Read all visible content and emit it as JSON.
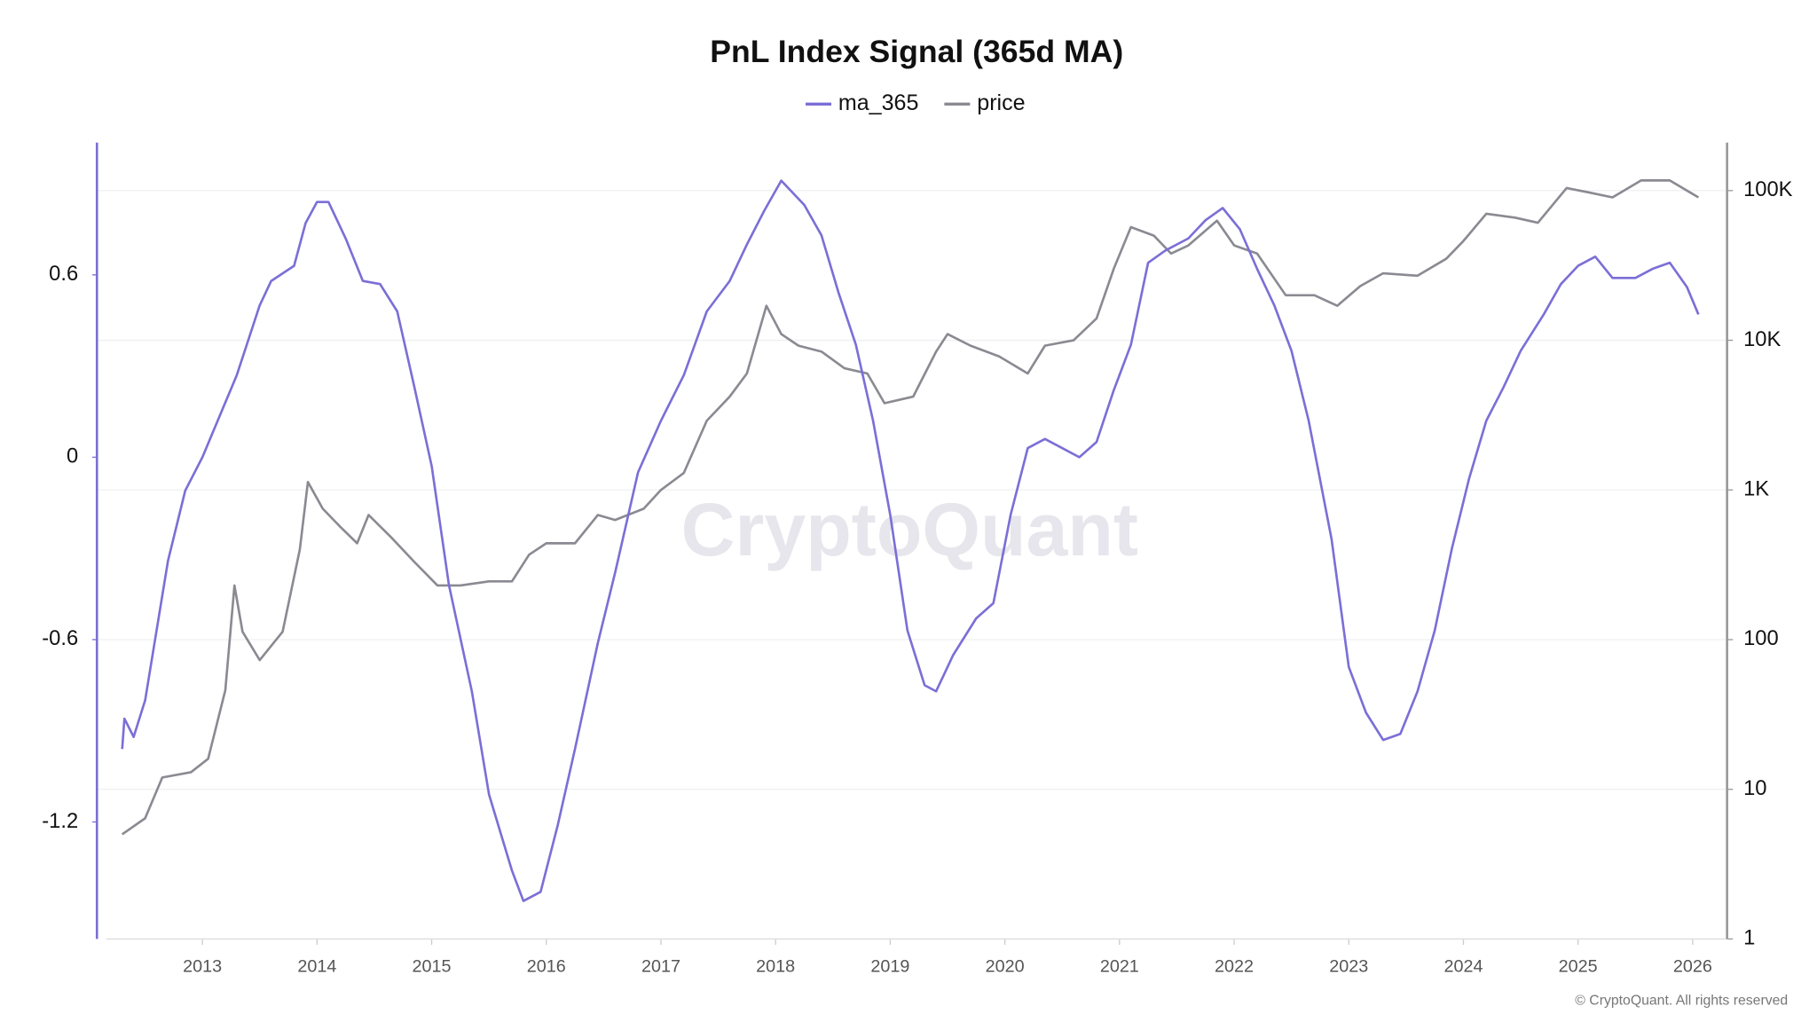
{
  "chart_data": {
    "type": "line",
    "title": "PnL Index Signal (365d MA)",
    "watermark": "CryptoQuant",
    "footer": "© CryptoQuant. All rights reserved",
    "xlim": [
      2012.08,
      2026.3
    ],
    "xticks": [
      2013,
      2014,
      2015,
      2016,
      2017,
      2018,
      2019,
      2020,
      2021,
      2022,
      2023,
      2024,
      2025,
      2026
    ],
    "ylim": [
      -1.585,
      1.035
    ],
    "yticks": [
      -1.2,
      -0.6,
      0,
      0.6
    ],
    "y2lim": [
      1,
      209000
    ],
    "y2log": true,
    "y2ticks": [
      1,
      10,
      100,
      {
        "value": 1000,
        "label": "1K"
      },
      {
        "value": 10000,
        "label": "10K"
      },
      {
        "value": 100000,
        "label": "100K"
      }
    ],
    "grid": true,
    "series": [
      {
        "name": "ma_365",
        "color": "#7b6fd6",
        "x": [
          2012.3,
          2012.32,
          2012.4,
          2012.5,
          2012.6,
          2012.7,
          2012.85,
          2013.0,
          2013.2,
          2013.3,
          2013.5,
          2013.6,
          2013.8,
          2013.9,
          2014.0,
          2014.1,
          2014.25,
          2014.4,
          2014.55,
          2014.7,
          2014.85,
          2015.0,
          2015.15,
          2015.35,
          2015.5,
          2015.7,
          2015.8,
          2015.95,
          2016.1,
          2016.25,
          2016.45,
          2016.6,
          2016.8,
          2017.0,
          2017.2,
          2017.4,
          2017.6,
          2017.75,
          2017.9,
          2018.05,
          2018.25,
          2018.4,
          2018.55,
          2018.7,
          2018.85,
          2019.0,
          2019.15,
          2019.3,
          2019.4,
          2019.55,
          2019.75,
          2019.9,
          2020.05,
          2020.2,
          2020.35,
          2020.5,
          2020.65,
          2020.8,
          2020.95,
          2021.1,
          2021.25,
          2021.4,
          2021.6,
          2021.75,
          2021.9,
          2022.05,
          2022.2,
          2022.35,
          2022.5,
          2022.65,
          2022.85,
          2023.0,
          2023.15,
          2023.3,
          2023.45,
          2023.6,
          2023.75,
          2023.9,
          2024.05,
          2024.2,
          2024.35,
          2024.5,
          2024.7,
          2024.85,
          2025.0,
          2025.15,
          2025.3,
          2025.5,
          2025.65,
          2025.8,
          2025.95,
          2026.05
        ],
        "values": [
          -0.96,
          -0.86,
          -0.92,
          -0.8,
          -0.57,
          -0.34,
          -0.11,
          0.0,
          0.18,
          0.27,
          0.5,
          0.58,
          0.63,
          0.77,
          0.84,
          0.84,
          0.72,
          0.58,
          0.57,
          0.48,
          0.23,
          -0.03,
          -0.42,
          -0.77,
          -1.11,
          -1.36,
          -1.46,
          -1.43,
          -1.21,
          -0.96,
          -0.61,
          -0.38,
          -0.05,
          0.12,
          0.27,
          0.48,
          0.58,
          0.7,
          0.81,
          0.91,
          0.83,
          0.73,
          0.54,
          0.37,
          0.12,
          -0.19,
          -0.57,
          -0.75,
          -0.77,
          -0.65,
          -0.53,
          -0.48,
          -0.19,
          0.03,
          0.06,
          0.03,
          0.0,
          0.05,
          0.22,
          0.37,
          0.64,
          0.68,
          0.72,
          0.78,
          0.82,
          0.75,
          0.62,
          0.5,
          0.35,
          0.12,
          -0.27,
          -0.69,
          -0.84,
          -0.93,
          -0.91,
          -0.77,
          -0.57,
          -0.3,
          -0.07,
          0.12,
          0.23,
          0.35,
          0.47,
          0.57,
          0.63,
          0.66,
          0.59,
          0.59,
          0.62,
          0.64,
          0.56,
          0.47
        ]
      },
      {
        "name": "price",
        "color": "#8a8a92",
        "axis": "y2",
        "x": [
          2012.3,
          2012.5,
          2012.65,
          2012.9,
          2013.05,
          2013.2,
          2013.28,
          2013.35,
          2013.5,
          2013.7,
          2013.85,
          2013.92,
          2014.05,
          2014.2,
          2014.35,
          2014.45,
          2014.65,
          2014.85,
          2015.05,
          2015.25,
          2015.5,
          2015.7,
          2015.85,
          2016.0,
          2016.25,
          2016.45,
          2016.6,
          2016.85,
          2017.0,
          2017.2,
          2017.4,
          2017.6,
          2017.75,
          2017.92,
          2018.05,
          2018.2,
          2018.4,
          2018.6,
          2018.8,
          2018.95,
          2019.2,
          2019.4,
          2019.5,
          2019.7,
          2019.95,
          2020.2,
          2020.35,
          2020.6,
          2020.8,
          2020.95,
          2021.1,
          2021.3,
          2021.45,
          2021.6,
          2021.85,
          2022.0,
          2022.2,
          2022.45,
          2022.7,
          2022.9,
          2023.1,
          2023.3,
          2023.6,
          2023.85,
          2024.0,
          2024.2,
          2024.45,
          2024.65,
          2024.9,
          2025.1,
          2025.3,
          2025.55,
          2025.8,
          2026.05
        ],
        "values": [
          5,
          6.4,
          12,
          13,
          16,
          46,
          230,
          113,
          73,
          113,
          400,
          1130,
          750,
          570,
          440,
          680,
          480,
          330,
          230,
          230,
          245,
          245,
          370,
          440,
          440,
          680,
          630,
          750,
          1000,
          1300,
          2900,
          4200,
          6000,
          17000,
          11000,
          9200,
          8400,
          6500,
          6000,
          3800,
          4200,
          8400,
          11000,
          9200,
          7800,
          6000,
          9200,
          10000,
          14000,
          30000,
          57000,
          50000,
          38000,
          43000,
          63000,
          43000,
          38000,
          20000,
          20000,
          17000,
          23000,
          28000,
          27000,
          35000,
          46000,
          70000,
          66000,
          61000,
          104000,
          97000,
          90000,
          117000,
          117000,
          90000
        ]
      }
    ]
  }
}
